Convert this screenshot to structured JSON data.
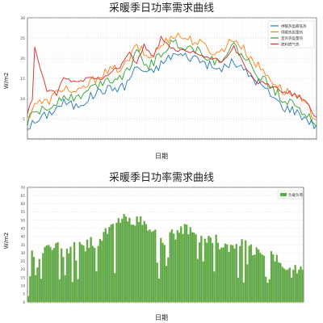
{
  "chart_data": [
    {
      "type": "line",
      "title": "采暖季日功率需求曲线",
      "xlabel": "日期",
      "ylabel": "W/m2",
      "ylim": [
        0,
        30
      ],
      "yticks": [
        5,
        10,
        15,
        20,
        25,
        30
      ],
      "grid": true,
      "legend_position": "top-right",
      "points": 120,
      "series": [
        {
          "name": "供暖热盈最低热",
          "color": "#1f77b4",
          "keypoints": [
            [
              0,
              3
            ],
            [
              3,
              4
            ],
            [
              8,
              6
            ],
            [
              15,
              9
            ],
            [
              20,
              8
            ],
            [
              30,
              12
            ],
            [
              40,
              13
            ],
            [
              45,
              18
            ],
            [
              50,
              16
            ],
            [
              60,
              21
            ],
            [
              70,
              20
            ],
            [
              78,
              17
            ],
            [
              85,
              19
            ],
            [
              95,
              14
            ],
            [
              105,
              8
            ],
            [
              110,
              7
            ],
            [
              115,
              5
            ],
            [
              119,
              3
            ]
          ]
        },
        {
          "name": "供暖热盈量热",
          "color": "#ff7f0e",
          "keypoints": [
            [
              0,
              5
            ],
            [
              3,
              9
            ],
            [
              8,
              9
            ],
            [
              15,
              13
            ],
            [
              20,
              11
            ],
            [
              30,
              16
            ],
            [
              40,
              18
            ],
            [
              45,
              23
            ],
            [
              50,
              20
            ],
            [
              60,
              26
            ],
            [
              70,
              24
            ],
            [
              78,
              21
            ],
            [
              85,
              25
            ],
            [
              95,
              18
            ],
            [
              105,
              12
            ],
            [
              110,
              11
            ],
            [
              115,
              8
            ],
            [
              119,
              5
            ]
          ]
        },
        {
          "name": "室外热盈量热",
          "color": "#2ca02c",
          "keypoints": [
            [
              0,
              4
            ],
            [
              3,
              7
            ],
            [
              8,
              7
            ],
            [
              15,
              11
            ],
            [
              20,
              10
            ],
            [
              30,
              14
            ],
            [
              40,
              16
            ],
            [
              45,
              21
            ],
            [
              50,
              18
            ],
            [
              60,
              24
            ],
            [
              70,
              22
            ],
            [
              78,
              19
            ],
            [
              85,
              23
            ],
            [
              95,
              16
            ],
            [
              105,
              10
            ],
            [
              110,
              9
            ],
            [
              115,
              6
            ],
            [
              119,
              4
            ]
          ]
        },
        {
          "name": "燃料燃气热",
          "color": "#d62728",
          "keypoints": [
            [
              0,
              6
            ],
            [
              2,
              10
            ],
            [
              3,
              23
            ],
            [
              5,
              18
            ],
            [
              8,
              12
            ],
            [
              12,
              11
            ],
            [
              15,
              15
            ],
            [
              20,
              14
            ],
            [
              25,
              15
            ],
            [
              30,
              15
            ],
            [
              38,
              18
            ],
            [
              42,
              21
            ],
            [
              45,
              19
            ],
            [
              48,
              23
            ],
            [
              52,
              20
            ],
            [
              55,
              25
            ],
            [
              60,
              22
            ],
            [
              70,
              21
            ],
            [
              75,
              20
            ],
            [
              80,
              19
            ],
            [
              85,
              23
            ],
            [
              90,
              17
            ],
            [
              95,
              14
            ],
            [
              100,
              13
            ],
            [
              105,
              12
            ],
            [
              110,
              11
            ],
            [
              115,
              9
            ],
            [
              119,
              5
            ]
          ]
        }
      ]
    },
    {
      "type": "bar",
      "title": "采暖季日功率需求曲线",
      "xlabel": "日期",
      "ylabel": "W/m2",
      "ylim": [
        0,
        70
      ],
      "yticks": [
        0,
        5,
        10,
        15,
        20,
        25,
        30,
        35,
        40,
        45,
        50,
        55,
        60,
        65,
        70
      ],
      "grid": true,
      "legend_position": "top-right",
      "points": 150,
      "series": [
        {
          "name": "负载负荷",
          "color": "#5aa35a",
          "edge_color": "#9acd32",
          "keypoints": [
            [
              0,
              6
            ],
            [
              2,
              30
            ],
            [
              4,
              20
            ],
            [
              8,
              33
            ],
            [
              15,
              34
            ],
            [
              20,
              30
            ],
            [
              25,
              36
            ],
            [
              30,
              34
            ],
            [
              38,
              38
            ],
            [
              45,
              45
            ],
            [
              50,
              50
            ],
            [
              55,
              51
            ],
            [
              60,
              49
            ],
            [
              65,
              46
            ],
            [
              70,
              40
            ],
            [
              75,
              38
            ],
            [
              80,
              42
            ],
            [
              88,
              45
            ],
            [
              92,
              38
            ],
            [
              98,
              40
            ],
            [
              104,
              36
            ],
            [
              110,
              33
            ],
            [
              118,
              35
            ],
            [
              124,
              30
            ],
            [
              130,
              28
            ],
            [
              138,
              24
            ],
            [
              144,
              20
            ],
            [
              149,
              22
            ]
          ]
        }
      ]
    }
  ]
}
